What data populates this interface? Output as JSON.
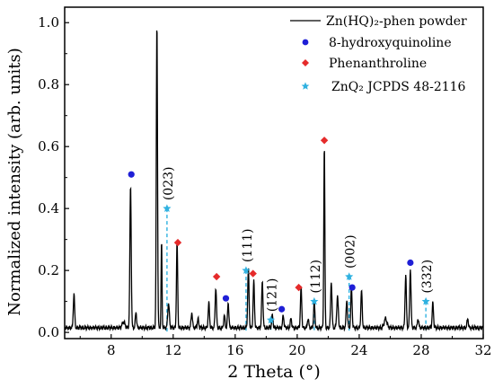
{
  "chart_data": {
    "type": "line",
    "xlabel": "2 Theta (°)",
    "ylabel": "Normalized intensity (arb. units)",
    "xlim": [
      5,
      32
    ],
    "ylim": [
      -0.02,
      1.05
    ],
    "xticks": [
      8,
      12,
      16,
      20,
      24,
      28,
      32
    ],
    "yticks": [
      0.0,
      0.2,
      0.4,
      0.6,
      0.8,
      1.0
    ],
    "xtick_labels": [
      "8",
      "12",
      "16",
      "20",
      "24",
      "28",
      "32"
    ],
    "ytick_labels": [
      "0.0",
      "0.2",
      "0.4",
      "0.6",
      "0.8",
      "1.0"
    ],
    "grid": false,
    "legend_position": "top-right",
    "series": [
      {
        "name": "Zn(HQ)₂-phen powder",
        "type": "line",
        "color": "#000000",
        "baseline": 0.015,
        "peaks": [
          [
            5.6,
            0.11,
            0.1
          ],
          [
            8.8,
            0.02,
            0.2
          ],
          [
            9.25,
            0.46,
            0.1
          ],
          [
            9.6,
            0.05,
            0.1
          ],
          [
            10.95,
            0.99,
            0.09
          ],
          [
            11.25,
            0.28,
            0.07
          ],
          [
            11.7,
            0.08,
            0.12
          ],
          [
            12.25,
            0.28,
            0.09
          ],
          [
            13.2,
            0.05,
            0.1
          ],
          [
            13.6,
            0.03,
            0.1
          ],
          [
            14.3,
            0.08,
            0.1
          ],
          [
            14.75,
            0.13,
            0.1
          ],
          [
            15.3,
            0.04,
            0.1
          ],
          [
            15.55,
            0.08,
            0.1
          ],
          [
            16.85,
            0.19,
            0.1
          ],
          [
            17.2,
            0.15,
            0.1
          ],
          [
            17.75,
            0.15,
            0.1
          ],
          [
            18.4,
            0.04,
            0.1
          ],
          [
            19.1,
            0.04,
            0.1
          ],
          [
            19.6,
            0.03,
            0.1
          ],
          [
            20.25,
            0.13,
            0.1
          ],
          [
            20.7,
            0.03,
            0.1
          ],
          [
            21.1,
            0.08,
            0.1
          ],
          [
            21.75,
            0.59,
            0.08
          ],
          [
            22.2,
            0.15,
            0.1
          ],
          [
            22.6,
            0.1,
            0.12
          ],
          [
            23.2,
            0.09,
            0.1
          ],
          [
            23.5,
            0.13,
            0.1
          ],
          [
            24.15,
            0.12,
            0.1
          ],
          [
            25.7,
            0.03,
            0.2
          ],
          [
            27.0,
            0.17,
            0.1
          ],
          [
            27.3,
            0.19,
            0.1
          ],
          [
            27.8,
            0.03,
            0.1
          ],
          [
            28.75,
            0.08,
            0.1
          ],
          [
            31.0,
            0.03,
            0.1
          ]
        ]
      },
      {
        "name": "8-hydroxyquinoline",
        "type": "scatter",
        "marker": "circle",
        "color": "#1f1fd6",
        "points": [
          [
            9.3,
            0.51
          ],
          [
            15.4,
            0.11
          ],
          [
            19.0,
            0.075
          ],
          [
            23.55,
            0.145
          ],
          [
            27.3,
            0.225
          ]
        ]
      },
      {
        "name": "Phenanthroline",
        "type": "scatter",
        "marker": "diamond",
        "color": "#e52b2b",
        "points": [
          [
            12.3,
            0.29
          ],
          [
            14.8,
            0.18
          ],
          [
            17.15,
            0.19
          ],
          [
            20.1,
            0.145
          ],
          [
            21.75,
            0.62
          ]
        ]
      },
      {
        "name": "ZnQ₂ JCPDS 48-2116",
        "type": "reference",
        "marker": "star",
        "color": "#2fb1e0",
        "points": [
          [
            11.6,
            0.4
          ],
          [
            16.7,
            0.2
          ],
          [
            18.3,
            0.04
          ],
          [
            21.1,
            0.1
          ],
          [
            23.35,
            0.18
          ],
          [
            28.3,
            0.1
          ]
        ]
      }
    ],
    "annotations": [
      {
        "text": "(023)",
        "x": 11.6,
        "y": 0.4
      },
      {
        "text": "(111)",
        "x": 16.7,
        "y": 0.2
      },
      {
        "text": "(121)",
        "x": 18.3,
        "y": 0.04
      },
      {
        "text": "(112)",
        "x": 21.1,
        "y": 0.1
      },
      {
        "text": "(002)",
        "x": 23.35,
        "y": 0.18
      },
      {
        "text": "(332)",
        "x": 28.3,
        "y": 0.1
      }
    ]
  }
}
